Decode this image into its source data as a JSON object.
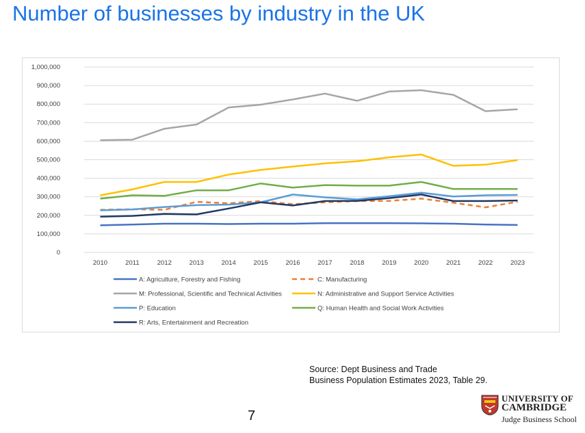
{
  "slide": {
    "title": "Number of businesses by industry in the UK",
    "source_line1": "Source: Dept Business and Trade",
    "source_line2": "Business Population Estimates 2023, Table 29.",
    "page_number": "7"
  },
  "logo": {
    "line1": "UNIVERSITY OF",
    "line2": "CAMBRIDGE",
    "line3": "Judge Business School",
    "icon": "cambridge-crest-icon"
  },
  "chart_data": {
    "type": "line",
    "title": "",
    "xlabel": "",
    "ylabel": "",
    "x": [
      2010,
      2011,
      2012,
      2013,
      2014,
      2015,
      2016,
      2017,
      2018,
      2019,
      2020,
      2021,
      2022,
      2023
    ],
    "x_tick_labels": [
      "2010",
      "2011",
      "2012",
      "2013",
      "2014",
      "2015",
      "2016",
      "2017",
      "2018",
      "2019",
      "2020",
      "2021",
      "2022",
      "2023"
    ],
    "ylim": [
      0,
      1000000
    ],
    "y_ticks": [
      0,
      100000,
      200000,
      300000,
      400000,
      500000,
      600000,
      700000,
      800000,
      900000,
      1000000
    ],
    "y_tick_labels": [
      "0",
      "100,000",
      "200,000",
      "300,000",
      "400,000",
      "500,000",
      "600,000",
      "700,000",
      "800,000",
      "900,000",
      "1,000,000"
    ],
    "grid": "horizontal",
    "legend_position": "bottom",
    "series": [
      {
        "name": "A: Agriculture, Forestry and Fishing",
        "color": "#4472c4",
        "dash": false,
        "values": [
          146000,
          150000,
          155000,
          155000,
          153000,
          155000,
          155000,
          158000,
          158000,
          158000,
          157000,
          155000,
          150000,
          148000
        ]
      },
      {
        "name": "C: Manufacturing",
        "color": "#ed7d31",
        "dash": true,
        "values": [
          230000,
          233000,
          230000,
          273000,
          265000,
          277000,
          260000,
          270000,
          277000,
          278000,
          290000,
          268000,
          243000,
          273000
        ]
      },
      {
        "name": "M: Professional, Scientific and Technical Activities",
        "color": "#a5a5a5",
        "dash": false,
        "values": [
          605000,
          608000,
          667000,
          690000,
          782000,
          797000,
          825000,
          857000,
          818000,
          868000,
          875000,
          850000,
          762000,
          772000
        ]
      },
      {
        "name": "N: Administrative and Support Service Activities",
        "color": "#ffc000",
        "dash": false,
        "values": [
          308000,
          340000,
          380000,
          380000,
          420000,
          445000,
          463000,
          480000,
          492000,
          513000,
          528000,
          467000,
          473000,
          498000
        ]
      },
      {
        "name": "P: Education",
        "color": "#5b9bd5",
        "dash": false,
        "values": [
          227000,
          232000,
          245000,
          255000,
          258000,
          270000,
          312000,
          297000,
          286000,
          303000,
          322000,
          302000,
          308000,
          310000
        ]
      },
      {
        "name": "Q: Human Health and Social Work Activities",
        "color": "#70ad47",
        "dash": false,
        "values": [
          290000,
          308000,
          305000,
          335000,
          335000,
          372000,
          350000,
          363000,
          360000,
          360000,
          380000,
          342000,
          342000,
          342000
        ]
      },
      {
        "name": "R: Arts, Entertainment and Recreation",
        "color": "#203864",
        "dash": false,
        "values": [
          193000,
          197000,
          208000,
          205000,
          237000,
          270000,
          253000,
          277000,
          278000,
          293000,
          312000,
          277000,
          277000,
          280000
        ]
      }
    ]
  }
}
